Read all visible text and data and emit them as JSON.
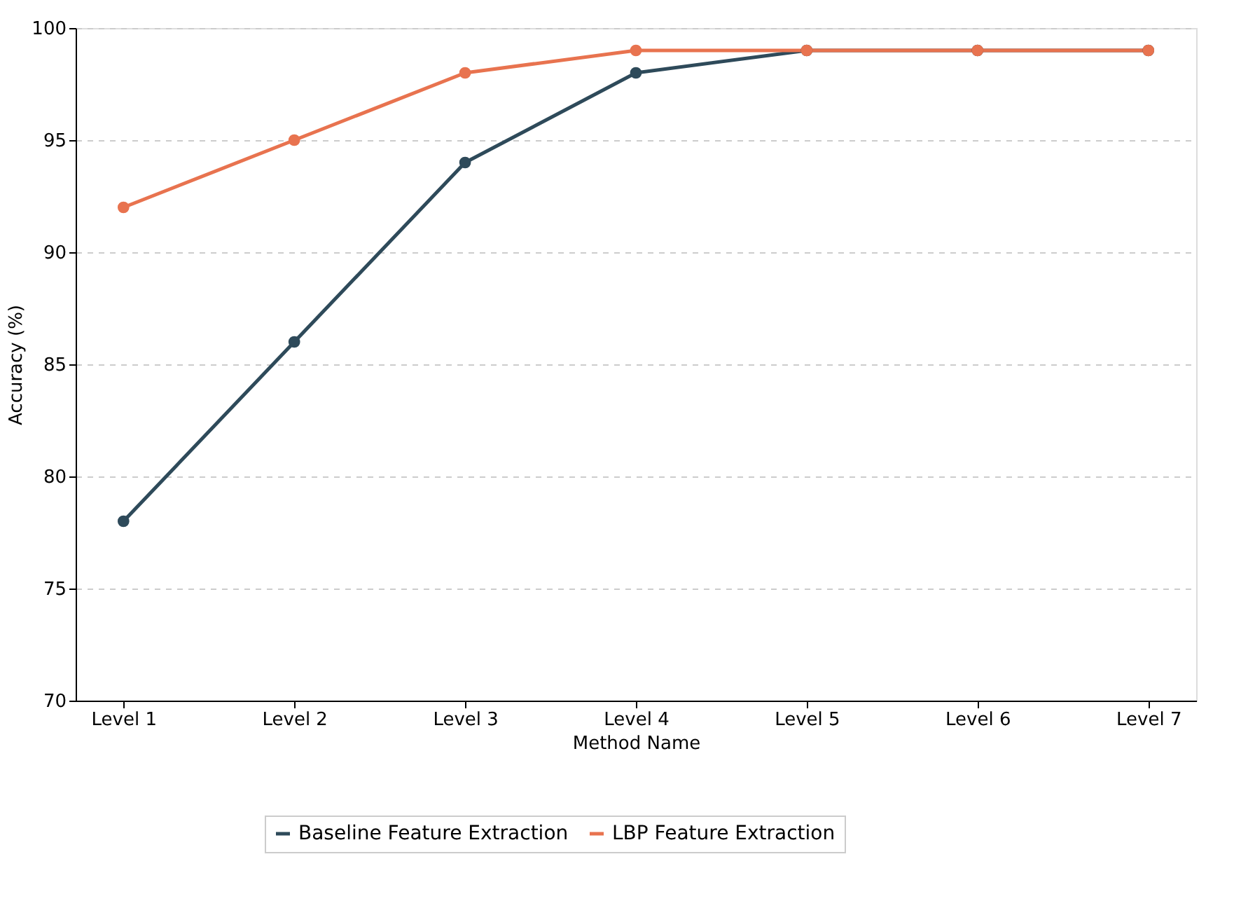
{
  "chart_data": {
    "type": "line",
    "xlabel": "Method Name",
    "ylabel": "Accuracy (%)",
    "categories": [
      "Level 1",
      "Level 2",
      "Level 3",
      "Level 4",
      "Level 5",
      "Level 6",
      "Level 7"
    ],
    "series": [
      {
        "name": "Baseline Feature Extraction",
        "color": "#2e4a5a",
        "values": [
          78,
          86,
          94,
          98,
          99,
          99,
          99
        ]
      },
      {
        "name": "LBP Feature Extraction",
        "color": "#e8734f",
        "values": [
          92,
          95,
          98,
          99,
          99,
          99,
          99
        ]
      }
    ],
    "ylim": [
      70,
      100
    ],
    "yticks": [
      70,
      75,
      80,
      85,
      90,
      95,
      100
    ],
    "grid": "y",
    "legend": "bottom",
    "marker": "circle",
    "line_style": "solid"
  }
}
